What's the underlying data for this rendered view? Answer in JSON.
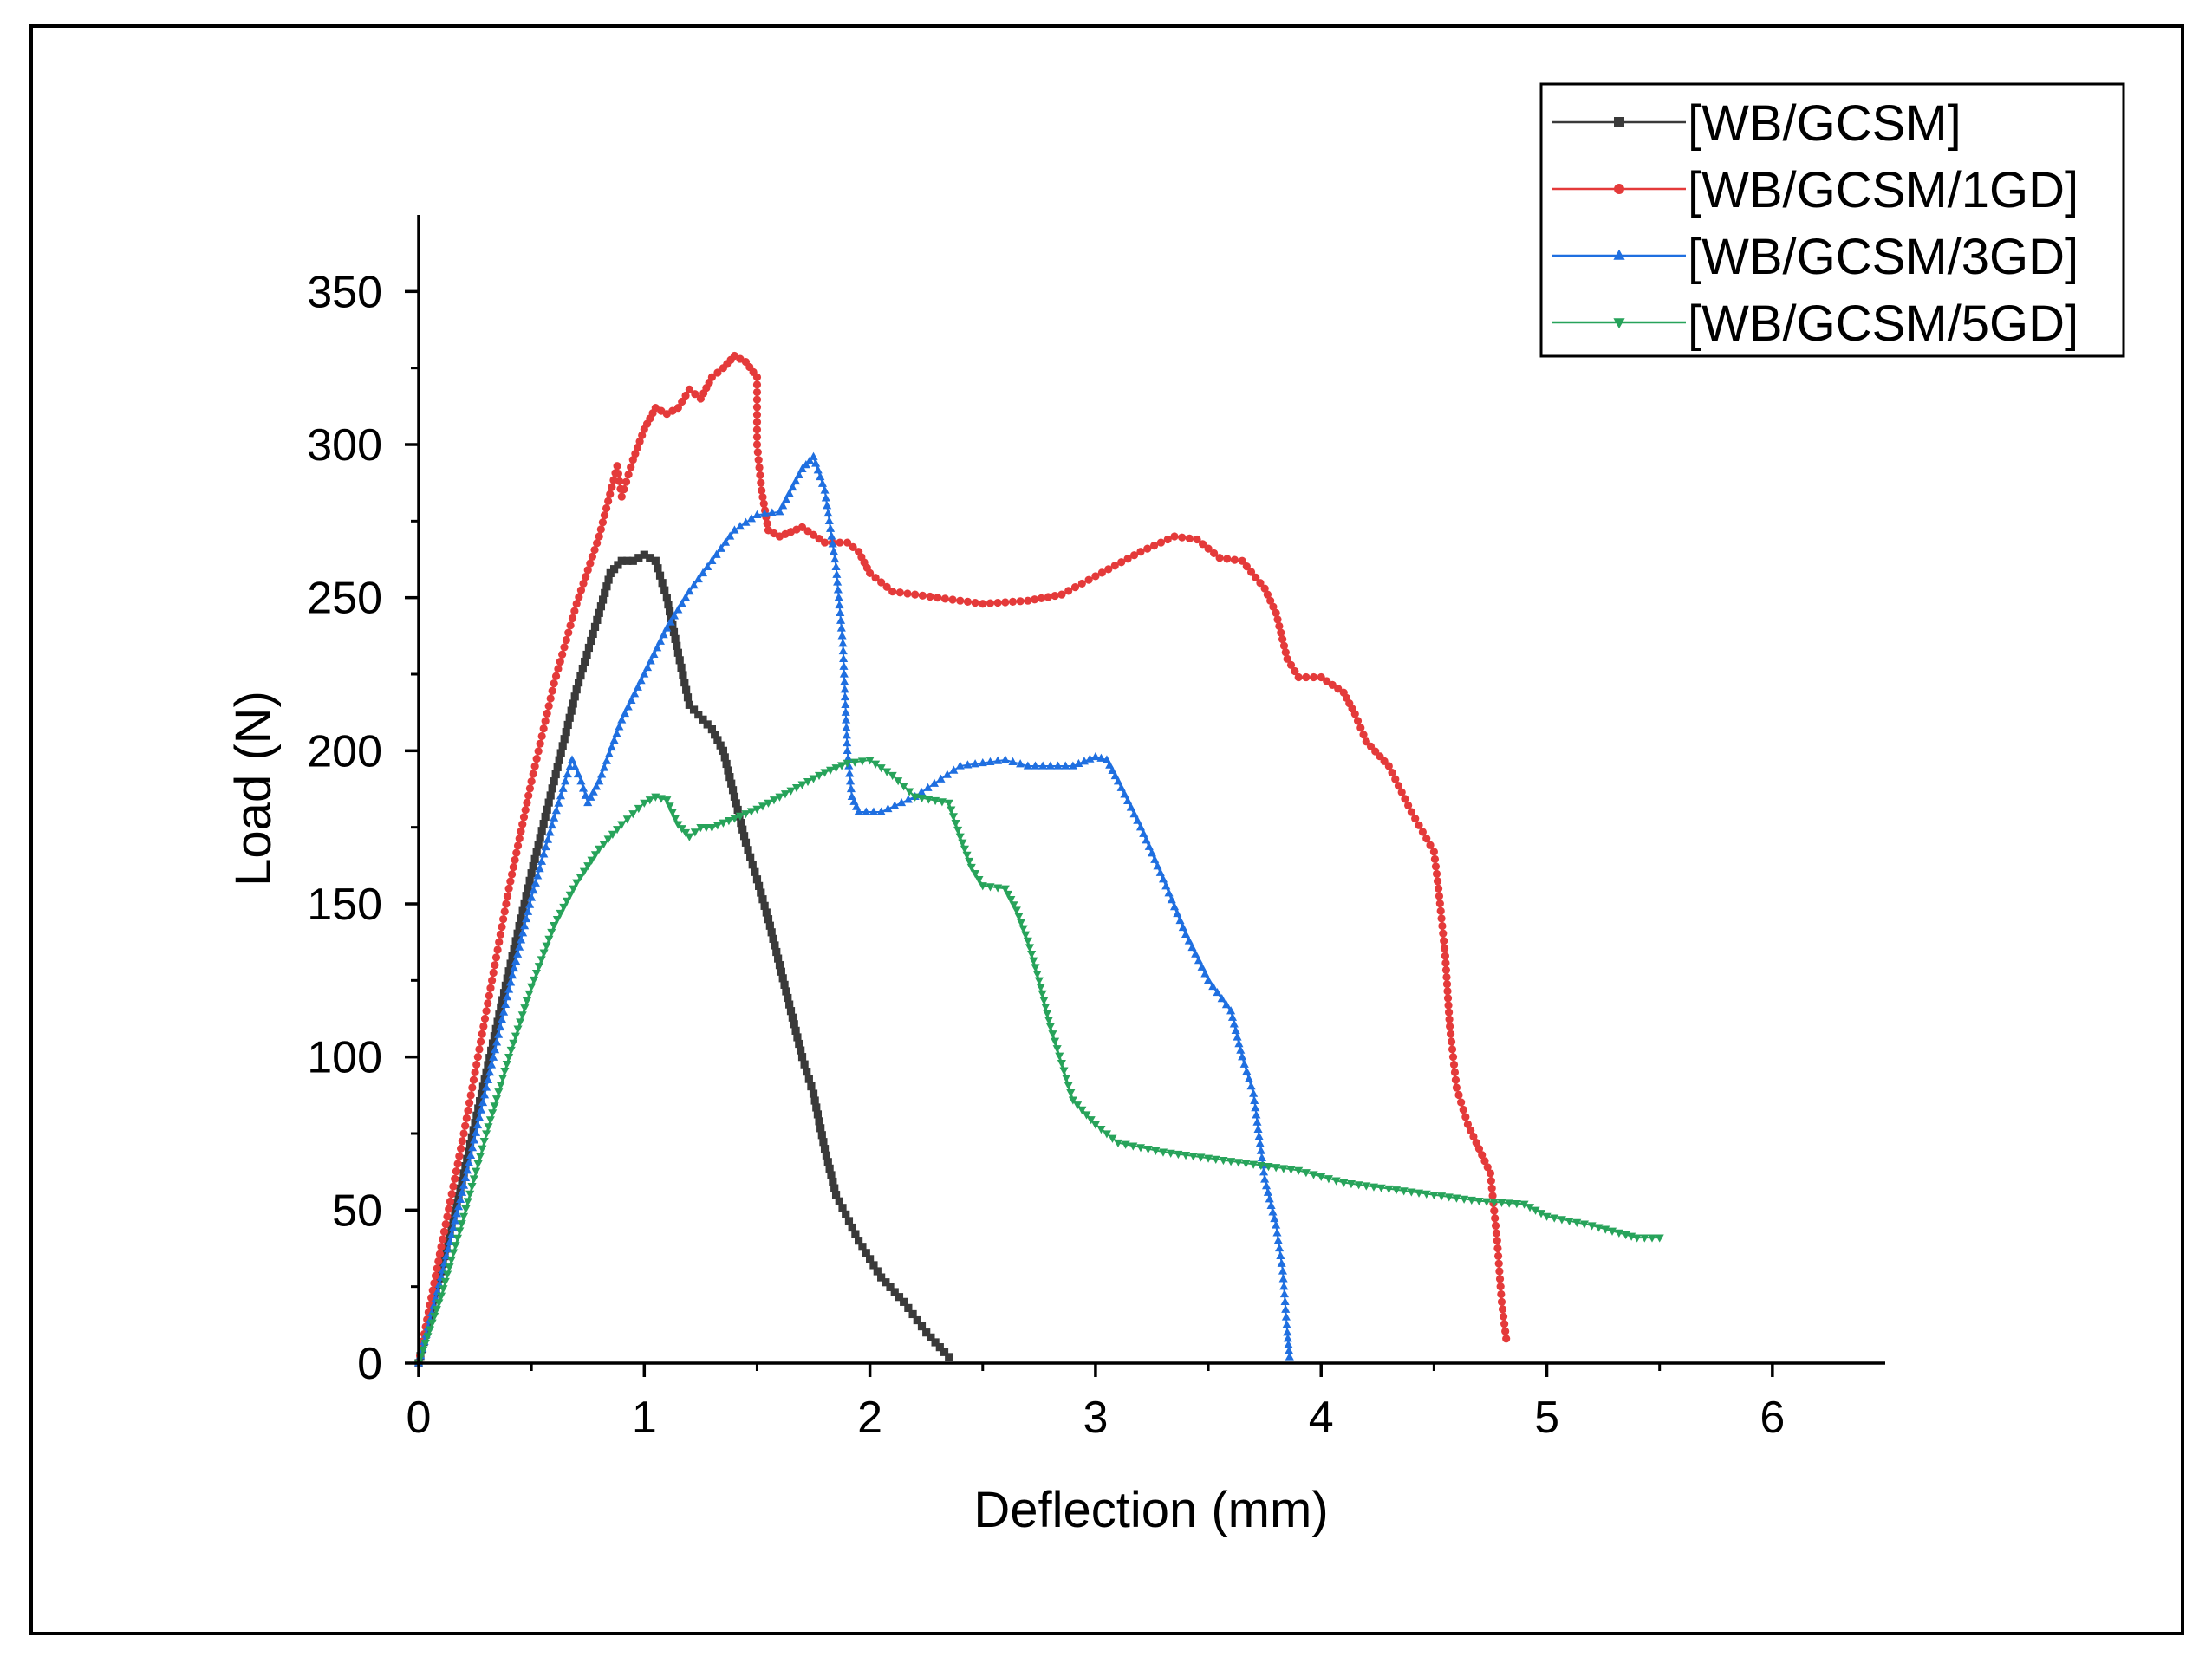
{
  "chart_data": {
    "type": "line",
    "title": "",
    "xlabel": "Deflection (mm)",
    "ylabel": "Load (N)",
    "xlim": [
      0,
      6.5
    ],
    "ylim": [
      0,
      375
    ],
    "xticks": [
      0,
      1,
      2,
      3,
      4,
      5,
      6
    ],
    "xtick_labels": [
      "0",
      "1",
      "2",
      "3",
      "4",
      "5",
      "6"
    ],
    "yticks": [
      0,
      50,
      100,
      150,
      200,
      250,
      300,
      350
    ],
    "ytick_labels": [
      "0",
      "50",
      "100",
      "150",
      "200",
      "250",
      "300",
      "350"
    ],
    "grid": false,
    "legend_position": "top-right",
    "series": [
      {
        "name": "[WB/GCSM]",
        "color": "#3a3a3a",
        "marker": "square",
        "points": [
          [
            0,
            0
          ],
          [
            0.1,
            30
          ],
          [
            0.2,
            62
          ],
          [
            0.3,
            95
          ],
          [
            0.4,
            128
          ],
          [
            0.5,
            160
          ],
          [
            0.6,
            190
          ],
          [
            0.7,
            220
          ],
          [
            0.8,
            245
          ],
          [
            0.85,
            258
          ],
          [
            0.9,
            262
          ],
          [
            0.95,
            262
          ],
          [
            1.0,
            264
          ],
          [
            1.05,
            262
          ],
          [
            1.1,
            250
          ],
          [
            1.15,
            232
          ],
          [
            1.2,
            215
          ],
          [
            1.3,
            207
          ],
          [
            1.35,
            200
          ],
          [
            1.4,
            185
          ],
          [
            1.45,
            170
          ],
          [
            1.5,
            158
          ],
          [
            1.55,
            145
          ],
          [
            1.6,
            130
          ],
          [
            1.65,
            115
          ],
          [
            1.7,
            100
          ],
          [
            1.75,
            88
          ],
          [
            1.8,
            70
          ],
          [
            1.85,
            55
          ],
          [
            1.95,
            40
          ],
          [
            2.05,
            28
          ],
          [
            2.15,
            20
          ],
          [
            2.25,
            10
          ],
          [
            2.35,
            2
          ]
        ]
      },
      {
        "name": "[WB/GCSM/1GD]",
        "color": "#e43a3a",
        "marker": "circle",
        "points": [
          [
            0,
            0
          ],
          [
            0.1,
            38
          ],
          [
            0.2,
            75
          ],
          [
            0.3,
            115
          ],
          [
            0.4,
            155
          ],
          [
            0.5,
            190
          ],
          [
            0.6,
            222
          ],
          [
            0.7,
            248
          ],
          [
            0.8,
            270
          ],
          [
            0.88,
            293
          ],
          [
            0.9,
            283
          ],
          [
            0.95,
            295
          ],
          [
            1.0,
            305
          ],
          [
            1.05,
            312
          ],
          [
            1.1,
            310
          ],
          [
            1.15,
            312
          ],
          [
            1.2,
            318
          ],
          [
            1.25,
            315
          ],
          [
            1.3,
            322
          ],
          [
            1.35,
            325
          ],
          [
            1.4,
            329
          ],
          [
            1.45,
            327
          ],
          [
            1.5,
            322
          ],
          [
            1.5,
            300
          ],
          [
            1.52,
            285
          ],
          [
            1.55,
            272
          ],
          [
            1.6,
            270
          ],
          [
            1.7,
            273
          ],
          [
            1.8,
            268
          ],
          [
            1.9,
            268
          ],
          [
            1.95,
            265
          ],
          [
            2.0,
            258
          ],
          [
            2.1,
            252
          ],
          [
            2.3,
            250
          ],
          [
            2.5,
            248
          ],
          [
            2.7,
            249
          ],
          [
            2.85,
            251
          ],
          [
            3.0,
            257
          ],
          [
            3.2,
            265
          ],
          [
            3.35,
            270
          ],
          [
            3.45,
            269
          ],
          [
            3.55,
            263
          ],
          [
            3.65,
            262
          ],
          [
            3.75,
            253
          ],
          [
            3.8,
            245
          ],
          [
            3.85,
            230
          ],
          [
            3.9,
            224
          ],
          [
            4.0,
            224
          ],
          [
            4.1,
            219
          ],
          [
            4.15,
            212
          ],
          [
            4.2,
            203
          ],
          [
            4.3,
            195
          ],
          [
            4.4,
            180
          ],
          [
            4.5,
            167
          ],
          [
            4.52,
            155
          ],
          [
            4.55,
            133
          ],
          [
            4.57,
            110
          ],
          [
            4.6,
            90
          ],
          [
            4.65,
            78
          ],
          [
            4.7,
            70
          ],
          [
            4.75,
            62
          ],
          [
            4.78,
            40
          ],
          [
            4.8,
            20
          ],
          [
            4.82,
            8
          ]
        ]
      },
      {
        "name": "[WB/GCSM/3GD]",
        "color": "#1f6fe0",
        "marker": "triangle-up",
        "points": [
          [
            0,
            0
          ],
          [
            0.1,
            28
          ],
          [
            0.2,
            58
          ],
          [
            0.3,
            90
          ],
          [
            0.4,
            122
          ],
          [
            0.5,
            152
          ],
          [
            0.6,
            178
          ],
          [
            0.65,
            190
          ],
          [
            0.68,
            197
          ],
          [
            0.72,
            190
          ],
          [
            0.75,
            183
          ],
          [
            0.8,
            190
          ],
          [
            0.9,
            210
          ],
          [
            1.0,
            225
          ],
          [
            1.1,
            240
          ],
          [
            1.2,
            252
          ],
          [
            1.3,
            262
          ],
          [
            1.4,
            272
          ],
          [
            1.5,
            277
          ],
          [
            1.6,
            278
          ],
          [
            1.7,
            292
          ],
          [
            1.75,
            296
          ],
          [
            1.8,
            285
          ],
          [
            1.85,
            260
          ],
          [
            1.88,
            235
          ],
          [
            1.9,
            200
          ],
          [
            1.92,
            185
          ],
          [
            1.95,
            180
          ],
          [
            2.05,
            180
          ],
          [
            2.2,
            185
          ],
          [
            2.4,
            195
          ],
          [
            2.6,
            197
          ],
          [
            2.7,
            195
          ],
          [
            2.9,
            195
          ],
          [
            3.0,
            198
          ],
          [
            3.05,
            197
          ],
          [
            3.1,
            190
          ],
          [
            3.2,
            175
          ],
          [
            3.3,
            158
          ],
          [
            3.4,
            140
          ],
          [
            3.5,
            125
          ],
          [
            3.6,
            115
          ],
          [
            3.65,
            100
          ],
          [
            3.7,
            88
          ],
          [
            3.75,
            60
          ],
          [
            3.8,
            45
          ],
          [
            3.83,
            30
          ],
          [
            3.85,
            10
          ],
          [
            3.86,
            2
          ]
        ]
      },
      {
        "name": "[WB/GCSM/5GD]",
        "color": "#27a35a",
        "marker": "triangle-down",
        "points": [
          [
            0,
            0
          ],
          [
            0.1,
            22
          ],
          [
            0.2,
            48
          ],
          [
            0.3,
            75
          ],
          [
            0.4,
            100
          ],
          [
            0.5,
            123
          ],
          [
            0.6,
            143
          ],
          [
            0.7,
            157
          ],
          [
            0.8,
            168
          ],
          [
            0.9,
            176
          ],
          [
            1.0,
            183
          ],
          [
            1.05,
            185
          ],
          [
            1.1,
            184
          ],
          [
            1.15,
            176
          ],
          [
            1.2,
            172
          ],
          [
            1.25,
            175
          ],
          [
            1.3,
            175
          ],
          [
            1.4,
            178
          ],
          [
            1.5,
            181
          ],
          [
            1.6,
            185
          ],
          [
            1.7,
            189
          ],
          [
            1.8,
            193
          ],
          [
            1.9,
            196
          ],
          [
            2.0,
            197
          ],
          [
            2.1,
            192
          ],
          [
            2.2,
            185
          ],
          [
            2.35,
            183
          ],
          [
            2.4,
            172
          ],
          [
            2.45,
            162
          ],
          [
            2.5,
            156
          ],
          [
            2.6,
            155
          ],
          [
            2.65,
            148
          ],
          [
            2.7,
            138
          ],
          [
            2.75,
            125
          ],
          [
            2.8,
            110
          ],
          [
            2.85,
            98
          ],
          [
            2.9,
            86
          ],
          [
            3.0,
            78
          ],
          [
            3.1,
            72
          ],
          [
            3.3,
            69
          ],
          [
            3.5,
            67
          ],
          [
            3.7,
            65
          ],
          [
            3.9,
            63
          ],
          [
            4.1,
            59
          ],
          [
            4.3,
            57
          ],
          [
            4.5,
            55
          ],
          [
            4.7,
            53
          ],
          [
            4.9,
            52
          ],
          [
            5.0,
            48
          ],
          [
            5.2,
            45
          ],
          [
            5.35,
            42
          ],
          [
            5.4,
            41
          ],
          [
            5.5,
            41
          ]
        ]
      }
    ]
  }
}
